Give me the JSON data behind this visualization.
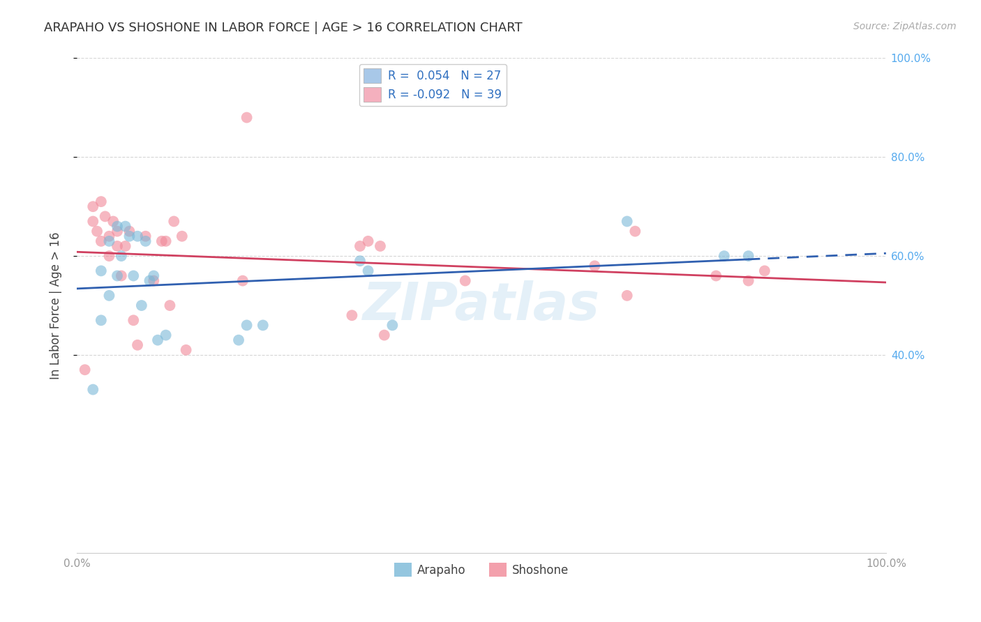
{
  "title": "ARAPAHO VS SHOSHONE IN LABOR FORCE | AGE > 16 CORRELATION CHART",
  "source": "Source: ZipAtlas.com",
  "ylabel": "In Labor Force | Age > 16",
  "watermark": "ZIPatlas",
  "xlim": [
    0.0,
    1.0
  ],
  "ylim": [
    0.0,
    1.0
  ],
  "xtick_positions": [
    0.0,
    0.2,
    0.4,
    0.6,
    0.8,
    1.0
  ],
  "xticklabels": [
    "0.0%",
    "",
    "",
    "",
    "",
    "100.0%"
  ],
  "ytick_positions": [
    0.4,
    0.6,
    0.8,
    1.0
  ],
  "yticklabels_right": [
    "40.0%",
    "60.0%",
    "80.0%",
    "100.0%"
  ],
  "arapaho_color": "#7ab8d8",
  "shoshone_color": "#f08898",
  "arapaho_line_color": "#3060b0",
  "shoshone_line_color": "#d04060",
  "legend_patch_arapaho": "#a8c8e8",
  "legend_patch_shoshone": "#f4b0be",
  "legend_label_arapaho": "R =  0.054   N = 27",
  "legend_label_shoshone": "R = -0.092   N = 39",
  "background_color": "#ffffff",
  "grid_color": "#cccccc",
  "title_color": "#333333",
  "right_tick_color": "#55aaee",
  "bottom_tick_color": "#999999",
  "arapaho_x": [
    0.02,
    0.03,
    0.03,
    0.04,
    0.04,
    0.05,
    0.05,
    0.055,
    0.06,
    0.065,
    0.07,
    0.075,
    0.08,
    0.085,
    0.09,
    0.095,
    0.1,
    0.11,
    0.2,
    0.21,
    0.23,
    0.35,
    0.36,
    0.39,
    0.68,
    0.8,
    0.83
  ],
  "arapaho_y": [
    0.33,
    0.47,
    0.57,
    0.63,
    0.52,
    0.66,
    0.56,
    0.6,
    0.66,
    0.64,
    0.56,
    0.64,
    0.5,
    0.63,
    0.55,
    0.56,
    0.43,
    0.44,
    0.43,
    0.46,
    0.46,
    0.59,
    0.57,
    0.46,
    0.67,
    0.6,
    0.6
  ],
  "shoshone_x": [
    0.01,
    0.02,
    0.02,
    0.025,
    0.03,
    0.03,
    0.035,
    0.04,
    0.04,
    0.045,
    0.05,
    0.05,
    0.055,
    0.06,
    0.065,
    0.07,
    0.075,
    0.085,
    0.095,
    0.105,
    0.11,
    0.115,
    0.12,
    0.13,
    0.135,
    0.205,
    0.21,
    0.34,
    0.35,
    0.36,
    0.375,
    0.38,
    0.48,
    0.64,
    0.68,
    0.69,
    0.79,
    0.83,
    0.85
  ],
  "shoshone_y": [
    0.37,
    0.7,
    0.67,
    0.65,
    0.63,
    0.71,
    0.68,
    0.64,
    0.6,
    0.67,
    0.62,
    0.65,
    0.56,
    0.62,
    0.65,
    0.47,
    0.42,
    0.64,
    0.55,
    0.63,
    0.63,
    0.5,
    0.67,
    0.64,
    0.41,
    0.55,
    0.88,
    0.48,
    0.62,
    0.63,
    0.62,
    0.44,
    0.55,
    0.58,
    0.52,
    0.65,
    0.56,
    0.55,
    0.57
  ]
}
